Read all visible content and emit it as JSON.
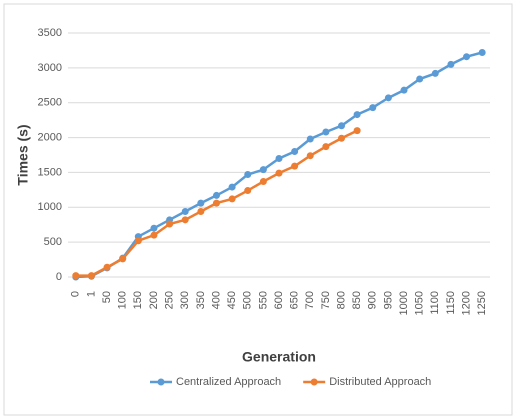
{
  "chart_data": {
    "type": "line",
    "x_label": "Generation",
    "y_label": "Times (s)",
    "categories": [
      "0",
      "1",
      "50",
      "100",
      "150",
      "200",
      "250",
      "300",
      "350",
      "400",
      "450",
      "500",
      "550",
      "600",
      "650",
      "700",
      "750",
      "800",
      "850",
      "900",
      "950",
      "1000",
      "1050",
      "1100",
      "1150",
      "1200",
      "1250"
    ],
    "series": [
      {
        "name": "Centralized Approach",
        "color": "#5b9bd5",
        "values": [
          0,
          10,
          130,
          270,
          580,
          700,
          820,
          940,
          1060,
          1170,
          1290,
          1470,
          1540,
          1700,
          1800,
          1980,
          2080,
          2170,
          2330,
          2430,
          2570,
          2680,
          2840,
          2920,
          3050,
          3160,
          3220
        ]
      },
      {
        "name": "Distributed Approach",
        "color": "#ed7d31",
        "values": [
          20,
          20,
          140,
          260,
          520,
          600,
          760,
          820,
          940,
          1060,
          1120,
          1240,
          1370,
          1490,
          1590,
          1740,
          1870,
          1990,
          2100,
          null,
          null,
          null,
          null,
          null,
          null,
          null,
          null
        ]
      }
    ],
    "ylim": [
      0,
      3500
    ],
    "yticks": [
      0,
      500,
      1000,
      1500,
      2000,
      2500,
      3000,
      3500
    ],
    "grid": true
  }
}
